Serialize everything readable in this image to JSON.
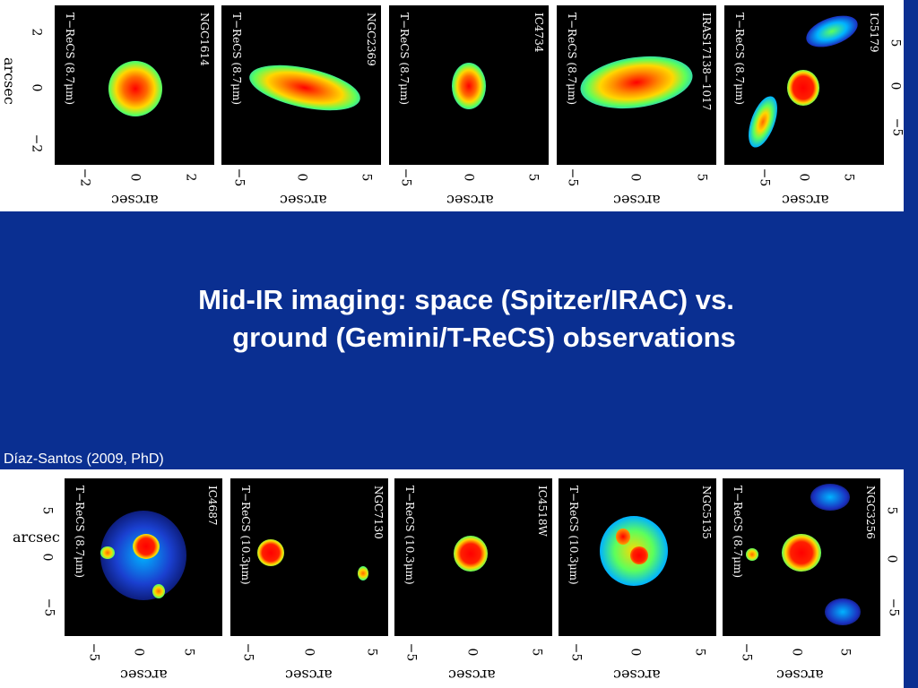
{
  "slide": {
    "title_line1": "Mid-IR imaging: space (Spitzer/IRAC) vs.",
    "title_line2": "ground (Gemini/T-ReCS) observations",
    "credit": "Díaz-Santos (2009, PhD)"
  },
  "axis_label": "arcsec",
  "top_row": {
    "y_ticks": [
      "2",
      "0",
      "−2"
    ],
    "panels": [
      {
        "object": "NGC1614",
        "instrument": "T−ReCS  (8.7μm)",
        "x_ticks": [
          "−2",
          "0",
          "2"
        ]
      },
      {
        "object": "NGC2369",
        "instrument": "T−ReCS  (8.7μm)",
        "x_ticks": [
          "−5",
          "0",
          "5"
        ]
      },
      {
        "object": "IC4734",
        "instrument": "T−ReCS  (8.7μm)",
        "x_ticks": [
          "−5",
          "0",
          "5"
        ]
      },
      {
        "object": "IRAS17138−1017",
        "instrument": "T−ReCS  (8.7μm)",
        "x_ticks": [
          "−5",
          "0",
          "5"
        ]
      },
      {
        "object": "IC5179",
        "instrument": "T−ReCS  (8.7μm)",
        "x_ticks": [
          "−5",
          "0",
          "5"
        ]
      }
    ],
    "right_y_ticks": [
      "5",
      "0",
      "−5"
    ]
  },
  "bottom_row": {
    "y_ticks": [
      "5",
      "0",
      "−5"
    ],
    "panels": [
      {
        "object": "IC4687",
        "instrument": "T−ReCS  (8.7μm)",
        "x_ticks": [
          "−5",
          "0",
          "5"
        ]
      },
      {
        "object": "NGC7130",
        "instrument": "T−ReCS  (10.3μm)",
        "x_ticks": [
          "−5",
          "0",
          "5"
        ]
      },
      {
        "object": "IC4518W",
        "instrument": "T−ReCS  (10.3μm)",
        "x_ticks": [
          "−5",
          "0",
          "5"
        ]
      },
      {
        "object": "NGC5135",
        "instrument": "T−ReCS  (10.3μm)",
        "x_ticks": [
          "−5",
          "0",
          "5"
        ]
      },
      {
        "object": "NGC3256",
        "instrument": "T−ReCS  (8.7μm)",
        "x_ticks": [
          "−5",
          "0",
          "5"
        ]
      }
    ],
    "right_y_ticks": [
      "5",
      "0",
      "−5"
    ]
  },
  "colors": {
    "background": "#0a2f91",
    "strip": "#ffffff",
    "panel": "#000000",
    "text": "#ffffff"
  }
}
